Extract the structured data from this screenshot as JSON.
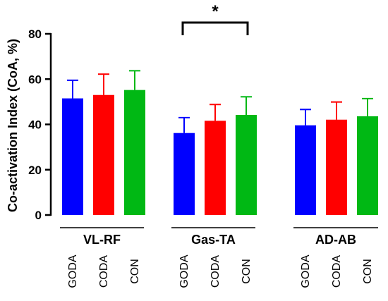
{
  "chart_data": {
    "type": "bar",
    "ylabel": "Co-activation Index (CoA, %)",
    "ylim": [
      0,
      80
    ],
    "yticks": [
      "0",
      "20",
      "40",
      "60",
      "80"
    ],
    "grid": false,
    "groups": [
      {
        "name": "VL-RF",
        "bars": [
          {
            "category": "GODA",
            "value": 51.5,
            "error": 8.0,
            "color": "#0000ff"
          },
          {
            "category": "CODA",
            "value": 53.0,
            "error": 9.2,
            "color": "#ff0000"
          },
          {
            "category": "CON",
            "value": 55.2,
            "error": 8.5,
            "color": "#00b814"
          }
        ]
      },
      {
        "name": "Gas-TA",
        "bars": [
          {
            "category": "GODA",
            "value": 36.2,
            "error": 6.8,
            "color": "#0000ff"
          },
          {
            "category": "CODA",
            "value": 41.6,
            "error": 7.2,
            "color": "#ff0000"
          },
          {
            "category": "CON",
            "value": 44.2,
            "error": 8.0,
            "color": "#00b814"
          }
        ]
      },
      {
        "name": "AD-AB",
        "bars": [
          {
            "category": "GODA",
            "value": 39.6,
            "error": 7.0,
            "color": "#0000ff"
          },
          {
            "category": "CODA",
            "value": 42.1,
            "error": 7.8,
            "color": "#ff0000"
          },
          {
            "category": "CON",
            "value": 43.6,
            "error": 7.8,
            "color": "#00b814"
          }
        ]
      }
    ],
    "annotations": [
      {
        "text": "*",
        "type": "significance",
        "group": "Gas-TA",
        "from": "GODA",
        "to": "CON"
      }
    ]
  }
}
